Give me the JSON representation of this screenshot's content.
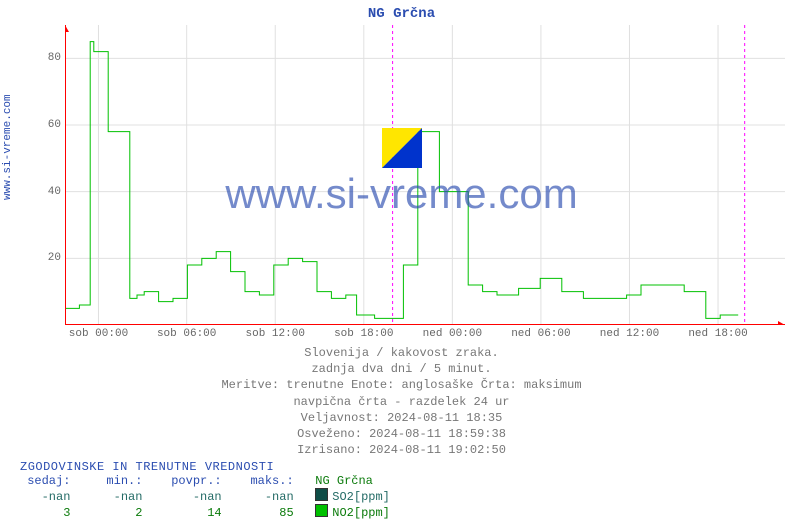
{
  "title": "NG Grčna",
  "ylabel": "www.si-vreme.com",
  "watermark": "www.si-vreme.com",
  "chart": {
    "type": "line-step",
    "background_color": "#ffffff",
    "grid_color": "#e0e0e0",
    "series_color": "#00c000",
    "marker_color": "#ff00ff",
    "axis_arrow_color": "#ff0000",
    "ylim": [
      0,
      90
    ],
    "ytick_step": 20,
    "yticks": [
      20,
      40,
      60,
      80
    ],
    "xticks": [
      "sob 00:00",
      "sob 06:00",
      "sob 12:00",
      "sob 18:00",
      "ned 00:00",
      "ned 06:00",
      "ned 12:00",
      "ned 18:00"
    ],
    "xtick_positions": [
      0.0465,
      0.169,
      0.292,
      0.415,
      0.538,
      0.661,
      0.784,
      0.907
    ],
    "vmarks": [
      0.455,
      0.944
    ],
    "line_width": 1,
    "data_x": [
      0.0,
      0.02,
      0.035,
      0.04,
      0.06,
      0.075,
      0.09,
      0.1,
      0.11,
      0.13,
      0.15,
      0.17,
      0.19,
      0.21,
      0.23,
      0.25,
      0.27,
      0.29,
      0.31,
      0.33,
      0.35,
      0.37,
      0.39,
      0.405,
      0.43,
      0.45,
      0.47,
      0.49,
      0.505,
      0.52,
      0.54,
      0.56,
      0.58,
      0.6,
      0.63,
      0.66,
      0.69,
      0.72,
      0.75,
      0.78,
      0.8,
      0.83,
      0.86,
      0.89,
      0.91,
      0.935
    ],
    "data_y": [
      5,
      6,
      85,
      82,
      58,
      58,
      8,
      9,
      10,
      7,
      8,
      18,
      20,
      22,
      16,
      10,
      9,
      18,
      20,
      19,
      10,
      8,
      9,
      3,
      2,
      2,
      18,
      58,
      58,
      40,
      40,
      12,
      10,
      9,
      11,
      14,
      10,
      8,
      8,
      9,
      12,
      12,
      10,
      2,
      3,
      3
    ]
  },
  "footer": [
    "Slovenija / kakovost zraka.",
    "zadnja dva dni / 5 minut.",
    "Meritve: trenutne  Enote: anglosaške  Črta: maksimum",
    "navpična črta - razdelek 24 ur",
    "Veljavnost: 2024-08-11 18:35",
    "Osveženo: 2024-08-11 18:59:38",
    "Izrisano: 2024-08-11 19:02:50"
  ],
  "stats": {
    "title": "ZGODOVINSKE IN TRENUTNE VREDNOSTI",
    "headers": [
      "sedaj:",
      "min.:",
      "povpr.:",
      "maks.:"
    ],
    "station": "NG Grčna",
    "rows": [
      {
        "name": "SO2[ppm]",
        "cells": [
          "-nan",
          "-nan",
          "-nan",
          "-nan"
        ],
        "color": "#0f4d47"
      },
      {
        "name": "NO2[ppm]",
        "cells": [
          "3",
          "2",
          "14",
          "85"
        ],
        "color": "#00c000"
      }
    ]
  },
  "logo_colors": [
    "#ffe600",
    "#0033cc"
  ]
}
